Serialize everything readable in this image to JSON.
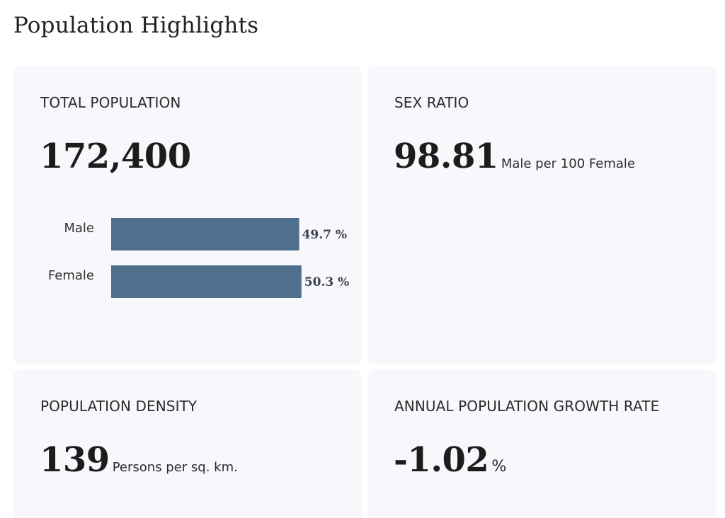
{
  "page_title": "Population Highlights",
  "colors": {
    "bar": "#4f708c",
    "card_bg": "#f7f7fc"
  },
  "cards": {
    "total_population": {
      "label": "TOTAL POPULATION",
      "value": "172,400"
    },
    "sex_ratio": {
      "label": "SEX RATIO",
      "value": "98.81",
      "unit": "Male per 100 Female"
    },
    "population_density": {
      "label": "POPULATION DENSITY",
      "value": "139",
      "unit": "Persons per sq. km."
    },
    "growth_rate": {
      "label": "ANNUAL POPULATION GROWTH RATE",
      "value": "-1.02",
      "unit": "%"
    }
  },
  "chart_data": {
    "type": "bar",
    "orientation": "horizontal",
    "categories": [
      "Male",
      "Female"
    ],
    "values": [
      49.7,
      50.3
    ],
    "value_labels": [
      "49.7 %",
      "50.3 %"
    ],
    "xlim": [
      0,
      64
    ]
  }
}
